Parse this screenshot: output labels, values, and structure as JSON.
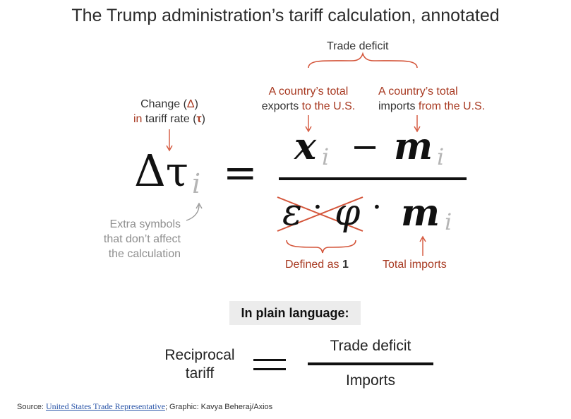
{
  "title": "The Trump administration’s tariff calculation, annotated",
  "labels": {
    "trade_deficit_top": "Trade deficit",
    "exports_line1": "A country’s total",
    "exports_line2_a": "exports ",
    "exports_line2_b": "to the U.S.",
    "imports_line1": "A country’s total",
    "imports_line2_a": "imports ",
    "imports_line2_b": "from the U.S.",
    "change_line1_a": "Change (",
    "change_line1_sym": "Δ",
    "change_line1_b": ")",
    "change_line2_a": "in ",
    "change_line2_b": "tariff rate (",
    "change_line2_sym": "τ",
    "change_line2_c": ")",
    "extra_line1": "Extra symbols",
    "extra_line2": "that don’t affect",
    "extra_line3": "the calculation",
    "defined_as_a": "Defined as ",
    "defined_as_b": "1",
    "total_imports": "Total imports"
  },
  "formula": {
    "delta": "Δ",
    "tau": "τ",
    "sub_i": "i",
    "equals": "=",
    "x": "x",
    "minus": "−",
    "m": "m",
    "epsilon": "ε",
    "dot": "·",
    "phi": "φ"
  },
  "plain_language": {
    "heading": "In plain language:",
    "left_line1": "Reciprocal",
    "left_line2": "tariff",
    "numerator": "Trade deficit",
    "denominator": "Imports"
  },
  "source": {
    "prefix": "Source: ",
    "link_text": "United States Trade Representative",
    "suffix": "; Graphic: Kavya Beheraj/Axios"
  },
  "colors": {
    "accent": "#a83a22",
    "arrow": "#d4553a",
    "grey": "#8e8e8e"
  }
}
